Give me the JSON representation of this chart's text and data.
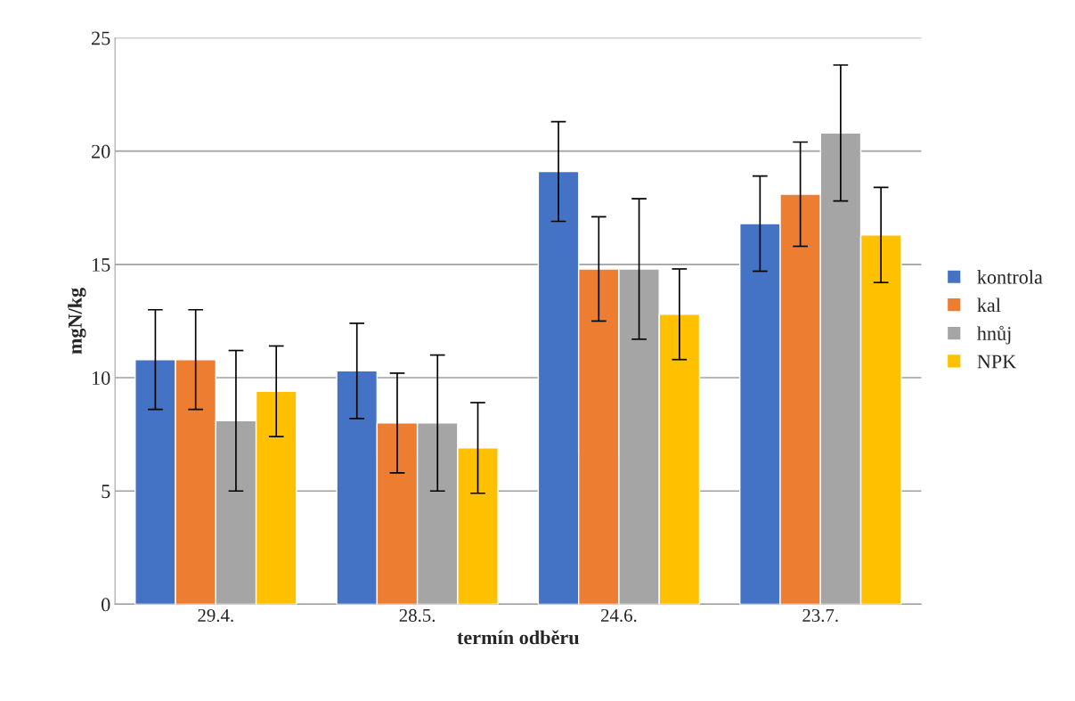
{
  "chart_data": {
    "type": "bar",
    "xlabel": "termín odběru",
    "ylabel": "mgN/kg",
    "categories": [
      "29.4.",
      "28.5.",
      "24.6.",
      "23.7."
    ],
    "series": [
      {
        "name": "kontrola",
        "color": "#4472c4",
        "values": [
          10.8,
          10.3,
          19.1,
          16.8
        ],
        "errors": [
          2.2,
          2.1,
          2.2,
          2.1
        ]
      },
      {
        "name": "kal",
        "color": "#ed7d31",
        "values": [
          10.8,
          8.0,
          14.8,
          18.1
        ],
        "errors": [
          2.2,
          2.2,
          2.3,
          2.3
        ]
      },
      {
        "name": "hnůj",
        "color": "#a5a5a5",
        "values": [
          8.1,
          8.0,
          14.8,
          20.8
        ],
        "errors": [
          3.1,
          3.0,
          3.1,
          3.0
        ]
      },
      {
        "name": "NPK",
        "color": "#ffc000",
        "values": [
          9.4,
          6.9,
          12.8,
          16.3
        ],
        "errors": [
          2.0,
          2.0,
          2.0,
          2.1
        ]
      }
    ],
    "ylim": [
      0,
      25
    ],
    "yticks": [
      0,
      5,
      10,
      15,
      20,
      25
    ],
    "grid": "y",
    "legend": "right"
  }
}
